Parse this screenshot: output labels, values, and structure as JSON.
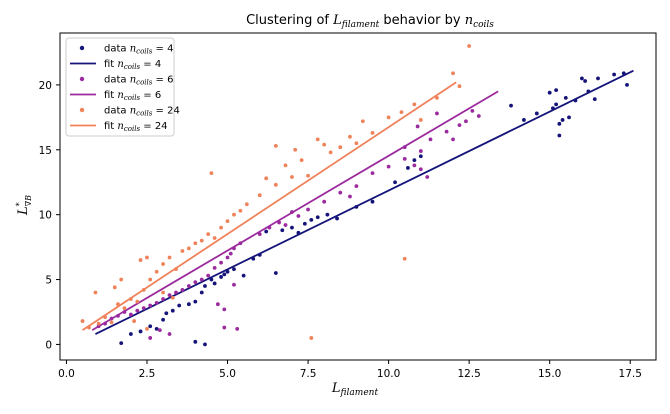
{
  "chart_data": {
    "type": "scatter",
    "title_prefix": "Clustering of ",
    "title_var": "L",
    "title_var_sub": "filament",
    "title_mid": " behavior by ",
    "title_var2": "n",
    "title_var2_sub": "coils",
    "xlabel": "L",
    "xlabel_sub": "filament",
    "ylabel": "L",
    "ylabel_sup": "*",
    "ylabel_sub": "∇B",
    "xlim": [
      -0.2,
      18.3
    ],
    "ylim": [
      -1.2,
      24.0
    ],
    "xticks": [
      0.0,
      2.5,
      5.0,
      7.5,
      10.0,
      12.5,
      15.0,
      17.5
    ],
    "xtick_labels": [
      "0.0",
      "2.5",
      "5.0",
      "7.5",
      "10.0",
      "12.5",
      "15.0",
      "17.5"
    ],
    "yticks": [
      0,
      5,
      10,
      15,
      20
    ],
    "ytick_labels": [
      "0",
      "5",
      "10",
      "15",
      "20"
    ],
    "legend_position": "upper-left",
    "series": [
      {
        "name": "data n_coils = 4",
        "legend_data": "data ",
        "legend_fit": "fit ",
        "legend_math": "n",
        "legend_sub": "coils",
        "legend_eq": " = 4",
        "color": "#14147a",
        "fit": {
          "x": [
            0.9,
            17.6
          ],
          "y": [
            0.8,
            21.1
          ]
        },
        "points": [
          [
            1.7,
            0.1
          ],
          [
            2.0,
            0.8
          ],
          [
            2.3,
            1.0
          ],
          [
            2.6,
            1.4
          ],
          [
            2.8,
            1.2
          ],
          [
            3.0,
            1.9
          ],
          [
            3.1,
            2.4
          ],
          [
            3.3,
            2.6
          ],
          [
            3.5,
            3.0
          ],
          [
            3.8,
            3.1
          ],
          [
            4.0,
            3.3
          ],
          [
            4.2,
            4.0
          ],
          [
            4.3,
            4.5
          ],
          [
            4.5,
            5.0
          ],
          [
            4.8,
            5.2
          ],
          [
            5.0,
            5.6
          ],
          [
            5.2,
            5.8
          ],
          [
            5.5,
            5.3
          ],
          [
            4.0,
            0.2
          ],
          [
            4.3,
            0.0
          ],
          [
            4.6,
            4.7
          ],
          [
            4.9,
            5.4
          ],
          [
            5.8,
            6.6
          ],
          [
            6.0,
            6.9
          ],
          [
            6.2,
            8.7
          ],
          [
            6.5,
            5.5
          ],
          [
            6.7,
            8.8
          ],
          [
            7.0,
            9.0
          ],
          [
            7.2,
            8.6
          ],
          [
            7.4,
            9.3
          ],
          [
            7.6,
            9.6
          ],
          [
            7.8,
            9.8
          ],
          [
            8.1,
            10.0
          ],
          [
            8.4,
            9.7
          ],
          [
            9.0,
            10.6
          ],
          [
            9.5,
            11.0
          ],
          [
            10.2,
            12.5
          ],
          [
            10.6,
            13.6
          ],
          [
            10.8,
            14.2
          ],
          [
            11.0,
            14.5
          ],
          [
            13.8,
            18.4
          ],
          [
            14.2,
            17.3
          ],
          [
            14.6,
            17.8
          ],
          [
            15.0,
            19.4
          ],
          [
            15.1,
            18.2
          ],
          [
            15.2,
            19.6
          ],
          [
            15.3,
            16.1
          ],
          [
            15.4,
            17.3
          ],
          [
            15.5,
            19.0
          ],
          [
            15.8,
            18.8
          ],
          [
            16.0,
            20.5
          ],
          [
            16.1,
            20.3
          ],
          [
            16.2,
            19.5
          ],
          [
            16.4,
            18.9
          ],
          [
            16.5,
            20.5
          ],
          [
            17.0,
            20.8
          ],
          [
            17.3,
            20.9
          ],
          [
            17.4,
            20.0
          ],
          [
            15.3,
            17.0
          ],
          [
            15.6,
            17.5
          ],
          [
            15.2,
            18.5
          ]
        ]
      },
      {
        "name": "data n_coils = 6",
        "legend_data": "data ",
        "legend_fit": "fit ",
        "legend_math": "n",
        "legend_sub": "coils",
        "legend_eq": " = 6",
        "color": "#9b2a9e",
        "fit": {
          "x": [
            0.8,
            13.4
          ],
          "y": [
            1.1,
            19.5
          ]
        },
        "points": [
          [
            1.0,
            1.4
          ],
          [
            1.2,
            1.6
          ],
          [
            1.4,
            2.0
          ],
          [
            1.6,
            2.2
          ],
          [
            1.8,
            2.5
          ],
          [
            2.0,
            2.3
          ],
          [
            2.2,
            2.6
          ],
          [
            2.4,
            2.8
          ],
          [
            2.6,
            3.0
          ],
          [
            2.8,
            3.2
          ],
          [
            3.0,
            3.5
          ],
          [
            3.2,
            3.8
          ],
          [
            3.4,
            4.0
          ],
          [
            3.6,
            4.2
          ],
          [
            3.8,
            4.5
          ],
          [
            4.0,
            4.8
          ],
          [
            4.2,
            5.0
          ],
          [
            4.4,
            5.3
          ],
          [
            4.6,
            5.9
          ],
          [
            4.8,
            6.3
          ],
          [
            5.0,
            6.7
          ],
          [
            5.1,
            7.0
          ],
          [
            5.2,
            7.4
          ],
          [
            5.4,
            7.8
          ],
          [
            4.7,
            3.1
          ],
          [
            4.9,
            2.7
          ],
          [
            5.2,
            4.6
          ],
          [
            4.9,
            1.3
          ],
          [
            5.3,
            1.2
          ],
          [
            3.2,
            0.8
          ],
          [
            2.9,
            1.1
          ],
          [
            2.6,
            0.5
          ],
          [
            6.0,
            8.5
          ],
          [
            6.3,
            9.0
          ],
          [
            6.6,
            9.4
          ],
          [
            7.0,
            10.2
          ],
          [
            7.5,
            10.4
          ],
          [
            8.0,
            11.0
          ],
          [
            8.5,
            11.7
          ],
          [
            9.0,
            12.2
          ],
          [
            9.5,
            13.2
          ],
          [
            10.0,
            13.7
          ],
          [
            10.5,
            14.3
          ],
          [
            10.8,
            13.8
          ],
          [
            11.0,
            13.5
          ],
          [
            11.2,
            12.9
          ],
          [
            11.0,
            14.9
          ],
          [
            11.3,
            15.8
          ],
          [
            11.8,
            16.4
          ],
          [
            12.0,
            15.8
          ],
          [
            12.4,
            17.2
          ],
          [
            12.6,
            18.0
          ],
          [
            12.8,
            17.6
          ],
          [
            10.5,
            15.2
          ],
          [
            10.9,
            16.8
          ],
          [
            11.5,
            17.8
          ],
          [
            12.2,
            16.9
          ],
          [
            6.8,
            9.2
          ],
          [
            7.2,
            9.9
          ],
          [
            8.8,
            11.4
          ]
        ]
      },
      {
        "name": "data n_coils = 24",
        "legend_data": "data ",
        "legend_fit": "fit ",
        "legend_math": "n",
        "legend_sub": "coils",
        "legend_eq": " = 24",
        "color": "#f0825a",
        "fit": {
          "x": [
            0.5,
            12.1
          ],
          "y": [
            1.1,
            20.2
          ]
        },
        "points": [
          [
            0.5,
            1.8
          ],
          [
            0.7,
            1.3
          ],
          [
            0.9,
            4.0
          ],
          [
            1.0,
            1.6
          ],
          [
            1.2,
            2.1
          ],
          [
            1.4,
            1.7
          ],
          [
            1.6,
            3.1
          ],
          [
            1.8,
            2.8
          ],
          [
            2.0,
            3.5
          ],
          [
            2.2,
            3.3
          ],
          [
            2.4,
            4.2
          ],
          [
            2.6,
            5.0
          ],
          [
            2.8,
            5.6
          ],
          [
            3.0,
            6.2
          ],
          [
            3.2,
            6.7
          ],
          [
            3.4,
            5.8
          ],
          [
            3.6,
            7.2
          ],
          [
            3.8,
            7.4
          ],
          [
            4.0,
            7.8
          ],
          [
            4.2,
            8.0
          ],
          [
            4.4,
            8.5
          ],
          [
            4.6,
            8.2
          ],
          [
            4.8,
            9.0
          ],
          [
            5.0,
            9.5
          ],
          [
            5.2,
            10.0
          ],
          [
            5.4,
            10.3
          ],
          [
            5.6,
            10.8
          ],
          [
            4.5,
            13.2
          ],
          [
            2.3,
            6.5
          ],
          [
            2.5,
            6.7
          ],
          [
            1.5,
            4.4
          ],
          [
            1.7,
            5.0
          ],
          [
            3.0,
            4.0
          ],
          [
            3.3,
            3.6
          ],
          [
            2.1,
            1.8
          ],
          [
            2.5,
            1.2
          ],
          [
            6.0,
            11.5
          ],
          [
            6.2,
            12.8
          ],
          [
            6.5,
            12.3
          ],
          [
            6.8,
            13.8
          ],
          [
            7.0,
            12.9
          ],
          [
            7.3,
            14.2
          ],
          [
            7.5,
            13.0
          ],
          [
            7.8,
            15.8
          ],
          [
            8.0,
            15.4
          ],
          [
            8.2,
            14.8
          ],
          [
            8.5,
            15.2
          ],
          [
            8.8,
            16.0
          ],
          [
            9.0,
            15.5
          ],
          [
            9.5,
            16.3
          ],
          [
            10.0,
            17.5
          ],
          [
            10.4,
            17.9
          ],
          [
            10.8,
            18.5
          ],
          [
            11.0,
            17.3
          ],
          [
            11.5,
            19.0
          ],
          [
            12.0,
            20.9
          ],
          [
            12.2,
            19.9
          ],
          [
            12.5,
            23.0
          ],
          [
            10.5,
            6.6
          ],
          [
            7.6,
            0.5
          ],
          [
            6.5,
            15.3
          ],
          [
            7.1,
            15.0
          ],
          [
            9.2,
            17.2
          ]
        ]
      }
    ]
  }
}
